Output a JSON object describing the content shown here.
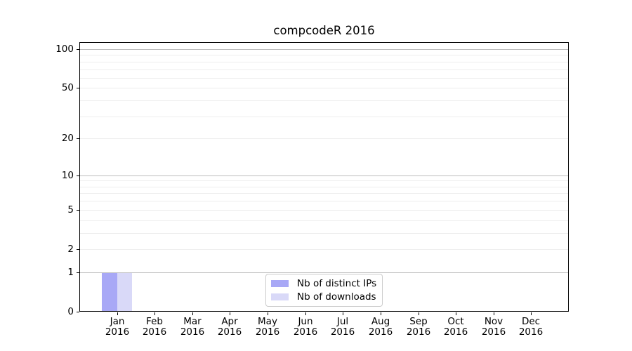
{
  "chart_data": {
    "type": "bar",
    "title": "compcodeR 2016",
    "x_year": "2016",
    "categories": [
      "Jan",
      "Feb",
      "Mar",
      "Apr",
      "May",
      "Jun",
      "Jul",
      "Aug",
      "Sep",
      "Oct",
      "Nov",
      "Dec"
    ],
    "series": [
      {
        "name": "Nb of distinct IPs",
        "color": "#a8a8f6",
        "values": [
          1,
          0,
          0,
          0,
          0,
          0,
          0,
          0,
          0,
          0,
          0,
          0
        ]
      },
      {
        "name": "Nb of downloads",
        "color": "#d9d9f8",
        "values": [
          1,
          0,
          0,
          0,
          0,
          0,
          0,
          0,
          0,
          0,
          0,
          0
        ]
      }
    ],
    "yscale": "log1p",
    "ylim": [
      0,
      115
    ],
    "yticks_labeled": [
      100,
      50,
      20,
      10,
      5,
      2,
      1,
      0
    ],
    "gridlines_major": [
      1,
      10,
      100
    ],
    "gridlines_minor": [
      2,
      3,
      4,
      5,
      6,
      7,
      8,
      9,
      20,
      30,
      40,
      50,
      60,
      70,
      80,
      90
    ],
    "grid": true,
    "legend_position": "lower center",
    "colors": {
      "major_grid": "#bdbdbd",
      "minor_grid": "#ededed",
      "axis": "#000000",
      "legend_border": "#cccccc",
      "background": "#ffffff"
    }
  }
}
